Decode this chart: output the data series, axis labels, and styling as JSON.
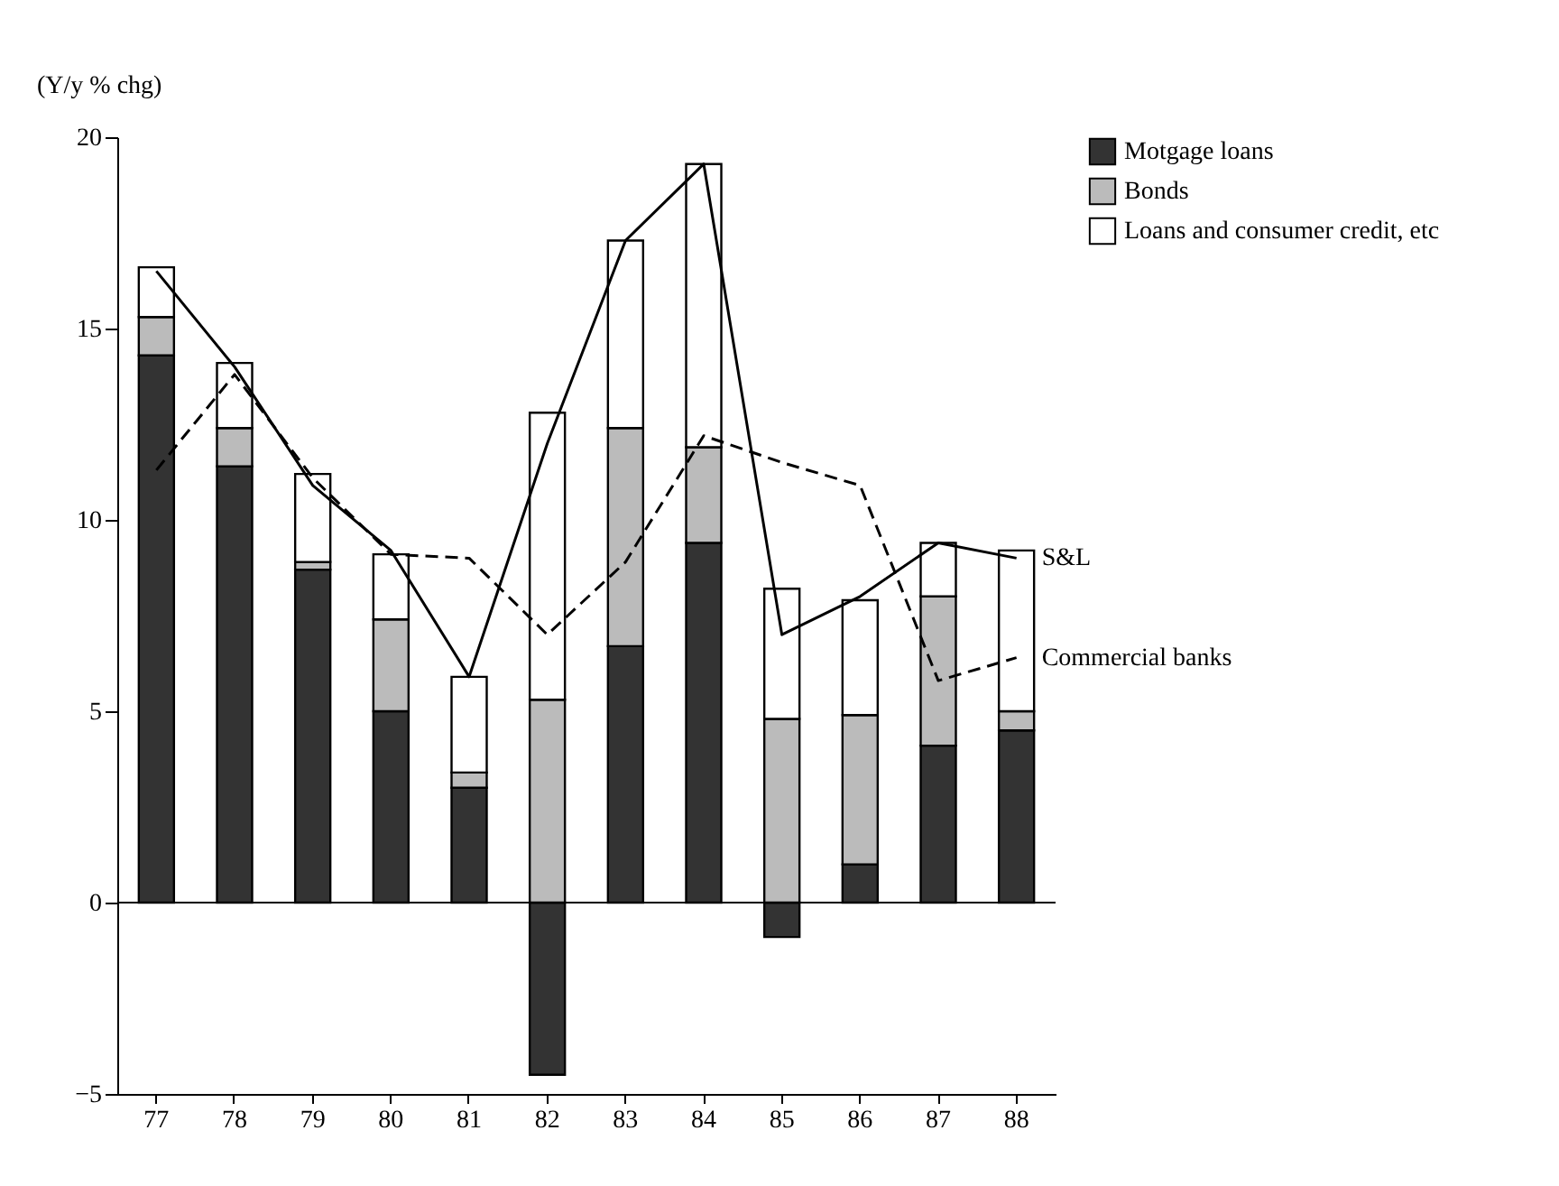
{
  "chart_data": {
    "type": "bar",
    "stacked": true,
    "ylabel": "(Y/y % chg)",
    "categories": [
      "77",
      "78",
      "79",
      "80",
      "81",
      "82",
      "83",
      "84",
      "85",
      "86",
      "87",
      "88"
    ],
    "series": [
      {
        "name": "Motgage loans",
        "color": "#333333",
        "values": [
          14.3,
          11.4,
          8.7,
          5.0,
          3.0,
          -4.5,
          6.7,
          9.4,
          -0.9,
          1.0,
          4.1,
          4.5
        ]
      },
      {
        "name": "Bonds",
        "color": "#bbbbbb",
        "values": [
          1.0,
          1.0,
          0.2,
          2.4,
          0.4,
          5.3,
          5.7,
          2.5,
          4.8,
          3.9,
          3.9,
          0.5
        ]
      },
      {
        "name": "Loans and consumer credit, etc",
        "color": "#ffffff",
        "values": [
          1.3,
          1.7,
          2.3,
          1.7,
          2.5,
          7.5,
          4.9,
          7.4,
          3.4,
          3.0,
          1.4,
          4.2
        ]
      },
      {
        "name": "S&L",
        "type": "line",
        "color": "#000000",
        "line_style": "solid",
        "values": [
          16.5,
          14.0,
          10.9,
          9.2,
          5.9,
          12.0,
          17.3,
          19.3,
          7.0,
          8.0,
          9.4,
          9.0
        ]
      },
      {
        "name": "Commercial banks",
        "type": "line",
        "color": "#000000",
        "line_style": "dashed",
        "values": [
          11.3,
          13.8,
          11.1,
          9.1,
          9.0,
          7.0,
          8.9,
          12.2,
          11.5,
          10.9,
          5.8,
          6.4
        ]
      }
    ],
    "ylim": [
      -5,
      20
    ],
    "yticks": [
      -5,
      0,
      5,
      10,
      15,
      20
    ],
    "ref_lines": [
      {
        "axis": "y",
        "value": 0
      }
    ],
    "legend": "right",
    "grid": false
  }
}
